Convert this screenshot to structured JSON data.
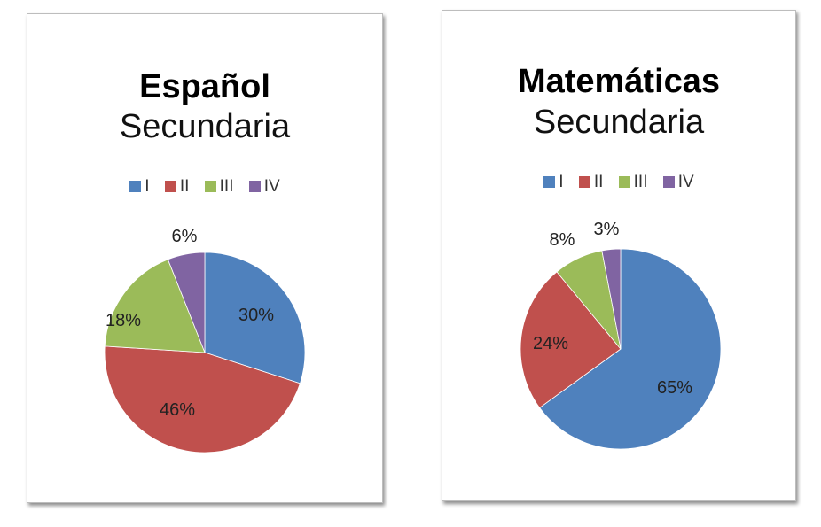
{
  "charts": [
    {
      "title": "Español",
      "subtitle": "Secundaria",
      "legend": [
        {
          "label": "I",
          "color": "#4f81bd"
        },
        {
          "label": "II",
          "color": "#c0504d"
        },
        {
          "label": "III",
          "color": "#9bbb59"
        },
        {
          "label": "IV",
          "color": "#8064a2"
        }
      ],
      "labels": [
        "30%",
        "46%",
        "18%",
        "6%"
      ]
    },
    {
      "title": "Matemáticas",
      "subtitle": "Secundaria",
      "legend": [
        {
          "label": "I",
          "color": "#4f81bd"
        },
        {
          "label": "II",
          "color": "#c0504d"
        },
        {
          "label": "III",
          "color": "#9bbb59"
        },
        {
          "label": "IV",
          "color": "#8064a2"
        }
      ],
      "labels": [
        "65%",
        "24%",
        "8%",
        "3%"
      ]
    }
  ],
  "chart_data": [
    {
      "type": "pie",
      "title": "Español Secundaria",
      "categories": [
        "I",
        "II",
        "III",
        "IV"
      ],
      "values": [
        30,
        46,
        18,
        6
      ],
      "unit": "%",
      "colors": [
        "#4f81bd",
        "#c0504d",
        "#9bbb59",
        "#8064a2"
      ],
      "legend_position": "top",
      "data_labels": [
        "30%",
        "46%",
        "18%",
        "6%"
      ]
    },
    {
      "type": "pie",
      "title": "Matemáticas Secundaria",
      "categories": [
        "I",
        "II",
        "III",
        "IV"
      ],
      "values": [
        65,
        24,
        8,
        3
      ],
      "unit": "%",
      "colors": [
        "#4f81bd",
        "#c0504d",
        "#9bbb59",
        "#8064a2"
      ],
      "legend_position": "top",
      "data_labels": [
        "65%",
        "24%",
        "8%",
        "3%"
      ]
    }
  ]
}
